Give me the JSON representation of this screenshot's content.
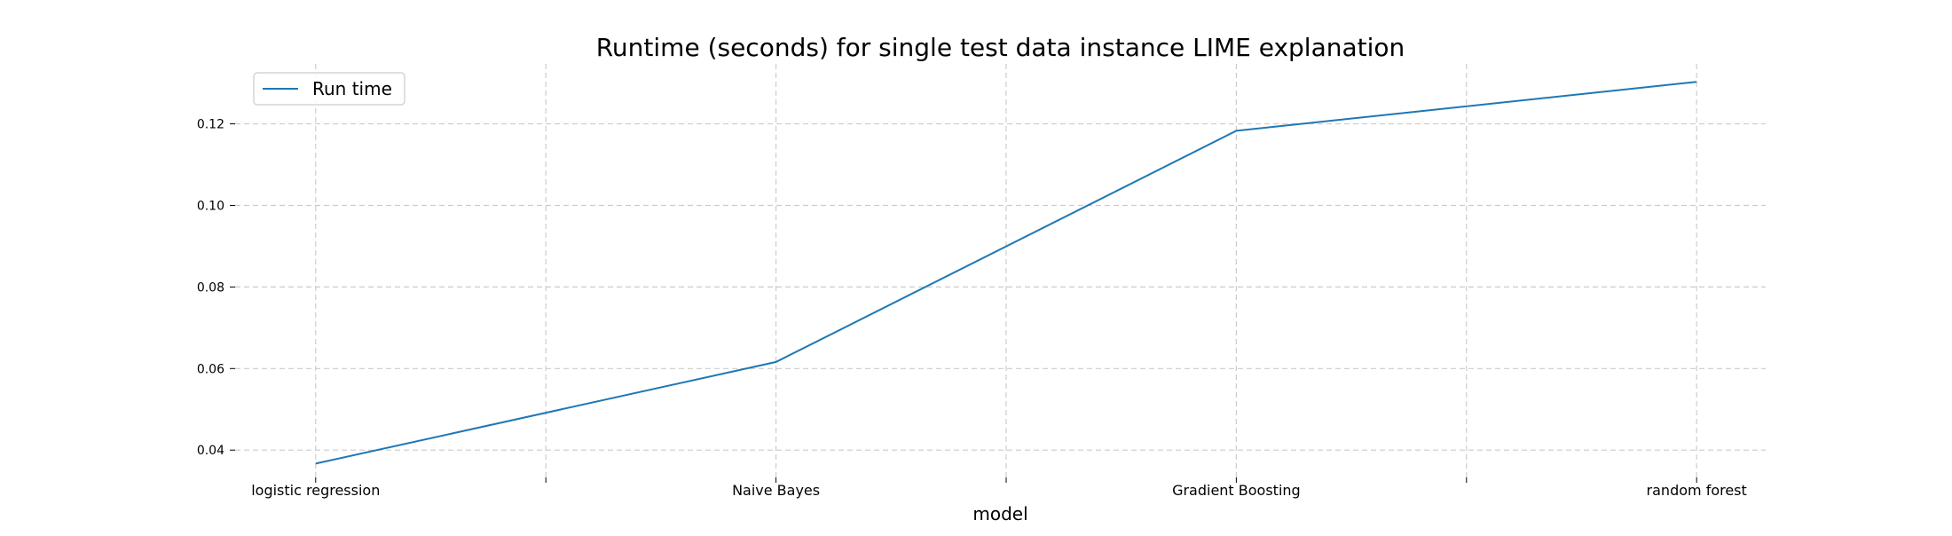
{
  "chart_data": {
    "type": "line",
    "title": "Runtime (seconds) for single test data instance LIME explanation",
    "xlabel": "model",
    "ylabel": "",
    "categories": [
      "logistic regression",
      "Naive Bayes",
      "Gradient Boosting",
      "random forest"
    ],
    "x": [
      0,
      2,
      4,
      6
    ],
    "x_minor_ticks": [
      1,
      3,
      5
    ],
    "xlim": [
      -0.35,
      6.3
    ],
    "ylim": [
      0.0333,
      0.1347
    ],
    "y_ticks": [
      0.04,
      0.06,
      0.08,
      0.1,
      0.12
    ],
    "y_tick_labels": [
      "0.04",
      "0.06",
      "0.08",
      "0.10",
      "0.12"
    ],
    "series": [
      {
        "name": "Run time",
        "values": [
          0.0367,
          0.0616,
          0.1183,
          0.1303
        ]
      }
    ],
    "grid": true,
    "legend_position": "top-left",
    "colors": {
      "line": "#1f77b4",
      "grid": "#cccccc",
      "text": "#000000"
    }
  }
}
